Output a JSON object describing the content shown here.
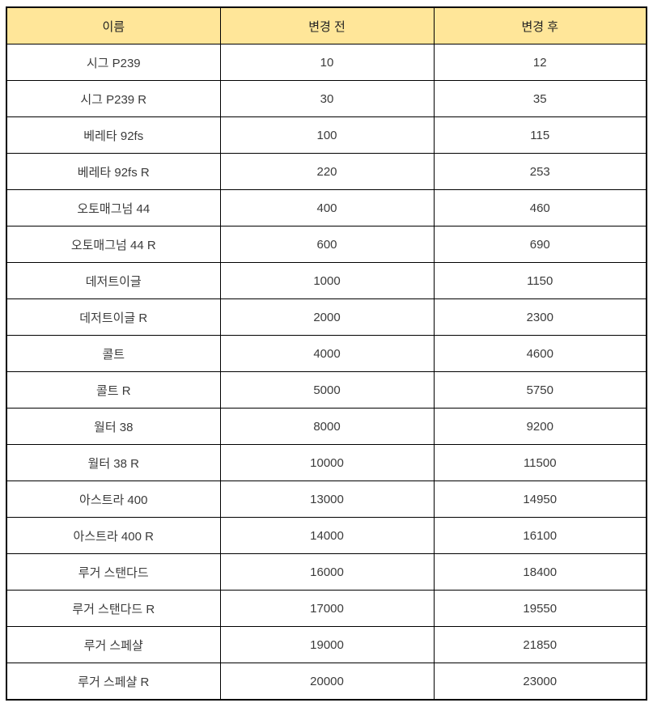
{
  "colors": {
    "header_bg": "#FFE699",
    "border": "#000000",
    "text": "#3B3B3B",
    "page_bg": "#FFFFFF"
  },
  "table": {
    "columns": [
      "이름",
      "변경 전",
      "변경 후"
    ],
    "rows": [
      {
        "name": "시그 P239",
        "before": "10",
        "after": "12"
      },
      {
        "name": "시그 P239 R",
        "before": "30",
        "after": "35"
      },
      {
        "name": "베레타 92fs",
        "before": "100",
        "after": "115"
      },
      {
        "name": "베레타 92fs R",
        "before": "220",
        "after": "253"
      },
      {
        "name": "오토매그넘 44",
        "before": "400",
        "after": "460"
      },
      {
        "name": "오토매그넘 44 R",
        "before": "600",
        "after": "690"
      },
      {
        "name": "데저트이글",
        "before": "1000",
        "after": "1150"
      },
      {
        "name": "데저트이글 R",
        "before": "2000",
        "after": "2300"
      },
      {
        "name": "콜트",
        "before": "4000",
        "after": "4600"
      },
      {
        "name": "콜트 R",
        "before": "5000",
        "after": "5750"
      },
      {
        "name": "월터 38",
        "before": "8000",
        "after": "9200"
      },
      {
        "name": "월터 38 R",
        "before": "10000",
        "after": "11500"
      },
      {
        "name": "아스트라 400",
        "before": "13000",
        "after": "14950"
      },
      {
        "name": "아스트라 400 R",
        "before": "14000",
        "after": "16100"
      },
      {
        "name": "루거 스탠다드",
        "before": "16000",
        "after": "18400"
      },
      {
        "name": "루거 스탠다드 R",
        "before": "17000",
        "after": "19550"
      },
      {
        "name": "루거 스페샬",
        "before": "19000",
        "after": "21850"
      },
      {
        "name": "루거 스페샬 R",
        "before": "20000",
        "after": "23000"
      }
    ]
  }
}
